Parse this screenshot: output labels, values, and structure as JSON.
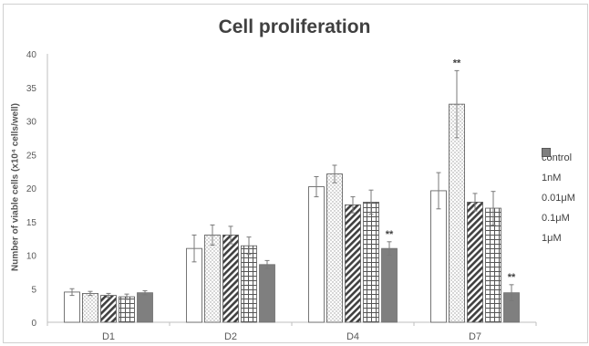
{
  "chart_data": {
    "type": "bar",
    "title": "Cell proliferation",
    "ylabel": "Number of viable cells (x10⁴ cells/well)",
    "xlabel": "",
    "ylim": [
      0,
      40
    ],
    "yticks": [
      0,
      5,
      10,
      15,
      20,
      25,
      30,
      35,
      40
    ],
    "categories": [
      "D1",
      "D2",
      "D4",
      "D7"
    ],
    "legend_position": "right",
    "grid": false,
    "series": [
      {
        "name": "control",
        "pattern": "white",
        "values": [
          4.5,
          11.0,
          20.2,
          19.6
        ],
        "errors": [
          0.5,
          2.0,
          1.5,
          2.7
        ]
      },
      {
        "name": "1nM",
        "pattern": "dots",
        "values": [
          4.3,
          13.0,
          22.1,
          32.5
        ],
        "errors": [
          0.3,
          1.5,
          1.3,
          5.0
        ]
      },
      {
        "name": "0.01μM",
        "pattern": "diagonal",
        "values": [
          4.0,
          13.0,
          17.5,
          17.9
        ],
        "errors": [
          0.3,
          1.3,
          1.2,
          1.3
        ]
      },
      {
        "name": "0.1μM",
        "pattern": "grid",
        "values": [
          3.8,
          11.4,
          17.9,
          17.0
        ],
        "errors": [
          0.4,
          1.3,
          1.8,
          2.5
        ]
      },
      {
        "name": "1μM",
        "pattern": "gray",
        "values": [
          4.4,
          8.6,
          11.0,
          4.4
        ],
        "errors": [
          0.3,
          0.6,
          1.0,
          1.2
        ]
      }
    ],
    "annotations": [
      {
        "category": "D4",
        "series": "1μM",
        "text": "**"
      },
      {
        "category": "D7",
        "series": "1nM",
        "text": "**"
      },
      {
        "category": "D7",
        "series": "1μM",
        "text": "**"
      }
    ]
  }
}
